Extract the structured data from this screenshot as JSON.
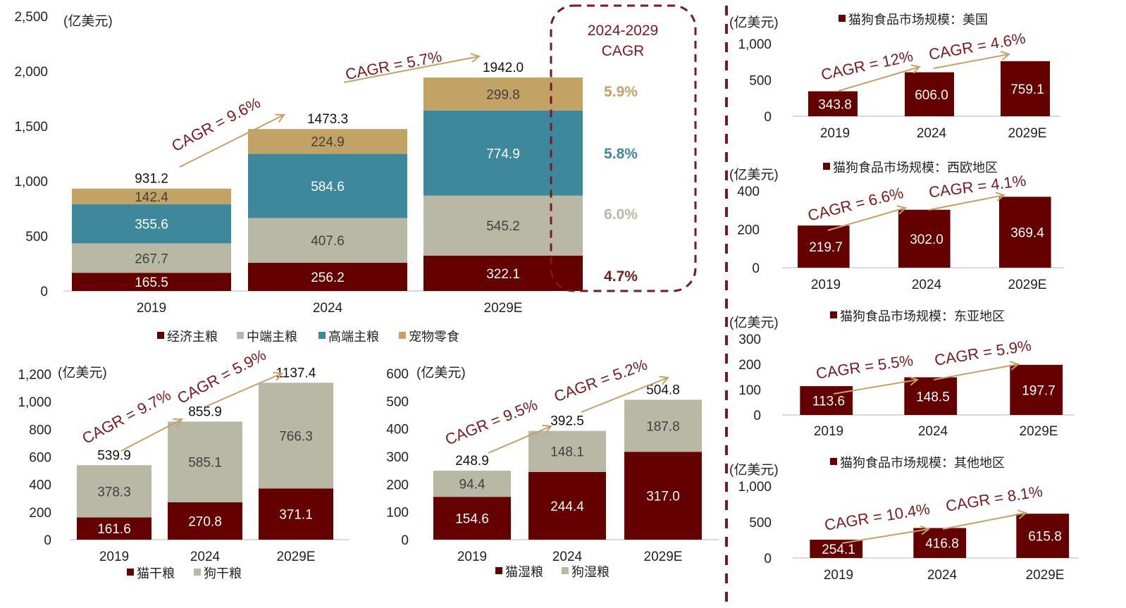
{
  "colors": {
    "economy": "#640000",
    "mid": "#b9b8a5",
    "premium": "#3e889b",
    "snack": "#c3a265",
    "arrow": "#c3a265",
    "cagr_text": "#7a1a1e",
    "divider": "#7a1a1e"
  },
  "chart_data": [
    {
      "id": "main",
      "type": "bar",
      "stacked": true,
      "unit_label": "(亿美元)",
      "categories": [
        "2019",
        "2024",
        "2029E"
      ],
      "ylim": [
        0,
        2500
      ],
      "yticks": [
        "0",
        "500",
        "1,000",
        "1,500",
        "2,000",
        "2,500"
      ],
      "ytick_values": [
        0,
        500,
        1000,
        1500,
        2000,
        2500
      ],
      "series": [
        {
          "name": "经济主粮",
          "color_key": "economy",
          "label_color": "#ffffff",
          "values": [
            165.5,
            256.2,
            322.1
          ],
          "labels": [
            "165.5",
            "256.2",
            "322.1"
          ]
        },
        {
          "name": "中端主粮",
          "color_key": "mid",
          "label_color": "#404040",
          "values": [
            267.7,
            407.6,
            545.2
          ],
          "labels": [
            "267.7",
            "407.6",
            "545.2"
          ]
        },
        {
          "name": "高端主粮",
          "color_key": "premium",
          "label_color": "#ffffff",
          "values": [
            355.6,
            584.6,
            774.9
          ],
          "labels": [
            "355.6",
            "584.6",
            "774.9"
          ]
        },
        {
          "name": "宠物零食",
          "color_key": "snack",
          "label_color": "#404040",
          "values": [
            142.4,
            224.9,
            299.8
          ],
          "labels": [
            "142.4",
            "224.9",
            "299.8"
          ]
        }
      ],
      "totals": [
        "931.2",
        "1473.3",
        "1942.0"
      ],
      "total_values": [
        931.2,
        1473.3,
        1942.0
      ],
      "cagr": [
        "CAGR = 9.6%",
        "CAGR = 5.7%"
      ],
      "cagr_box": {
        "title_line1": "2024-2029",
        "title_line2": "CAGR",
        "values": [
          "5.9%",
          "5.8%",
          "6.0%",
          "4.7%"
        ],
        "value_colors": [
          "#c3a265",
          "#3e889b",
          "#b9b8a5",
          "#7a1a1e"
        ]
      }
    },
    {
      "id": "dry",
      "type": "bar",
      "stacked": true,
      "unit_label": "(亿美元)",
      "categories": [
        "2019",
        "2024",
        "2029E"
      ],
      "ylim": [
        0,
        1200
      ],
      "yticks": [
        "0",
        "200",
        "400",
        "600",
        "800",
        "1,000",
        "1,200"
      ],
      "ytick_values": [
        0,
        200,
        400,
        600,
        800,
        1000,
        1200
      ],
      "series": [
        {
          "name": "猫干粮",
          "color_key": "economy",
          "label_color": "#ffffff",
          "values": [
            161.6,
            270.8,
            371.1
          ],
          "labels": [
            "161.6",
            "270.8",
            "371.1"
          ]
        },
        {
          "name": "狗干粮",
          "color_key": "mid",
          "label_color": "#404040",
          "values": [
            378.3,
            585.1,
            766.3
          ],
          "labels": [
            "378.3",
            "585.1",
            "766.3"
          ]
        }
      ],
      "totals": [
        "539.9",
        "855.9",
        "1137.4"
      ],
      "total_values": [
        539.9,
        855.9,
        1137.4
      ],
      "cagr": [
        "CAGR = 9.7%",
        "CAGR = 5.9%"
      ]
    },
    {
      "id": "wet",
      "type": "bar",
      "stacked": true,
      "unit_label": "(亿美元)",
      "categories": [
        "2019",
        "2024",
        "2029E"
      ],
      "ylim": [
        0,
        600
      ],
      "yticks": [
        "0",
        "100",
        "200",
        "300",
        "400",
        "500",
        "600"
      ],
      "ytick_values": [
        0,
        100,
        200,
        300,
        400,
        500,
        600
      ],
      "series": [
        {
          "name": "猫湿粮",
          "color_key": "economy",
          "label_color": "#ffffff",
          "values": [
            154.6,
            244.4,
            317.0
          ],
          "labels": [
            "154.6",
            "244.4",
            "317.0"
          ]
        },
        {
          "name": "狗湿粮",
          "color_key": "mid",
          "label_color": "#404040",
          "values": [
            94.4,
            148.1,
            187.8
          ],
          "labels": [
            "94.4",
            "148.1",
            "187.8"
          ]
        }
      ],
      "totals": [
        "248.9",
        "392.5",
        "504.8"
      ],
      "total_values": [
        248.9,
        392.5,
        504.8
      ],
      "cagr": [
        "CAGR = 9.5%",
        "CAGR = 5.2%"
      ]
    },
    {
      "id": "us",
      "type": "bar",
      "unit_label": "(亿美元)",
      "legend": "猫狗食品市场规模：美国",
      "categories": [
        "2019",
        "2024",
        "2029E"
      ],
      "ylim": [
        0,
        1000
      ],
      "yticks": [
        "0",
        "500",
        "1,000"
      ],
      "ytick_values": [
        0,
        500,
        1000
      ],
      "values": [
        343.8,
        606.0,
        759.1
      ],
      "labels": [
        "343.8",
        "606.0",
        "759.1"
      ],
      "cagr": [
        "CAGR = 12%",
        "CAGR = 4.6%"
      ]
    },
    {
      "id": "weu",
      "type": "bar",
      "unit_label": "(亿美元)",
      "legend": "猫狗食品市场规模：西欧地区",
      "categories": [
        "2019",
        "2024",
        "2029E"
      ],
      "ylim": [
        0,
        400
      ],
      "yticks": [
        "0",
        "200",
        "400"
      ],
      "ytick_values": [
        0,
        200,
        400
      ],
      "values": [
        219.7,
        302.0,
        369.4
      ],
      "labels": [
        "219.7",
        "302.0",
        "369.4"
      ],
      "cagr": [
        "CAGR = 6.6%",
        "CAGR = 4.1%"
      ]
    },
    {
      "id": "ea",
      "type": "bar",
      "unit_label": "(亿美元)",
      "legend": "猫狗食品市场规模：东亚地区",
      "categories": [
        "2019",
        "2024",
        "2029E"
      ],
      "ylim": [
        0,
        300
      ],
      "yticks": [
        "0",
        "100",
        "200",
        "300"
      ],
      "ytick_values": [
        0,
        100,
        200,
        300
      ],
      "values": [
        113.6,
        148.5,
        197.7
      ],
      "labels": [
        "113.6",
        "148.5",
        "197.7"
      ],
      "cagr": [
        "CAGR = 5.5%",
        "CAGR = 5.9%"
      ]
    },
    {
      "id": "other",
      "type": "bar",
      "unit_label": "(亿美元)",
      "legend": "猫狗食品市场规模：其他地区",
      "categories": [
        "2019",
        "2024",
        "2029E"
      ],
      "ylim": [
        0,
        1000
      ],
      "yticks": [
        "0",
        "500",
        "1,000"
      ],
      "ytick_values": [
        0,
        500,
        1000
      ],
      "values": [
        254.1,
        416.8,
        615.8
      ],
      "labels": [
        "254.1",
        "416.8",
        "615.8"
      ],
      "cagr": [
        "CAGR = 10.4%",
        "CAGR = 8.1%"
      ]
    }
  ]
}
